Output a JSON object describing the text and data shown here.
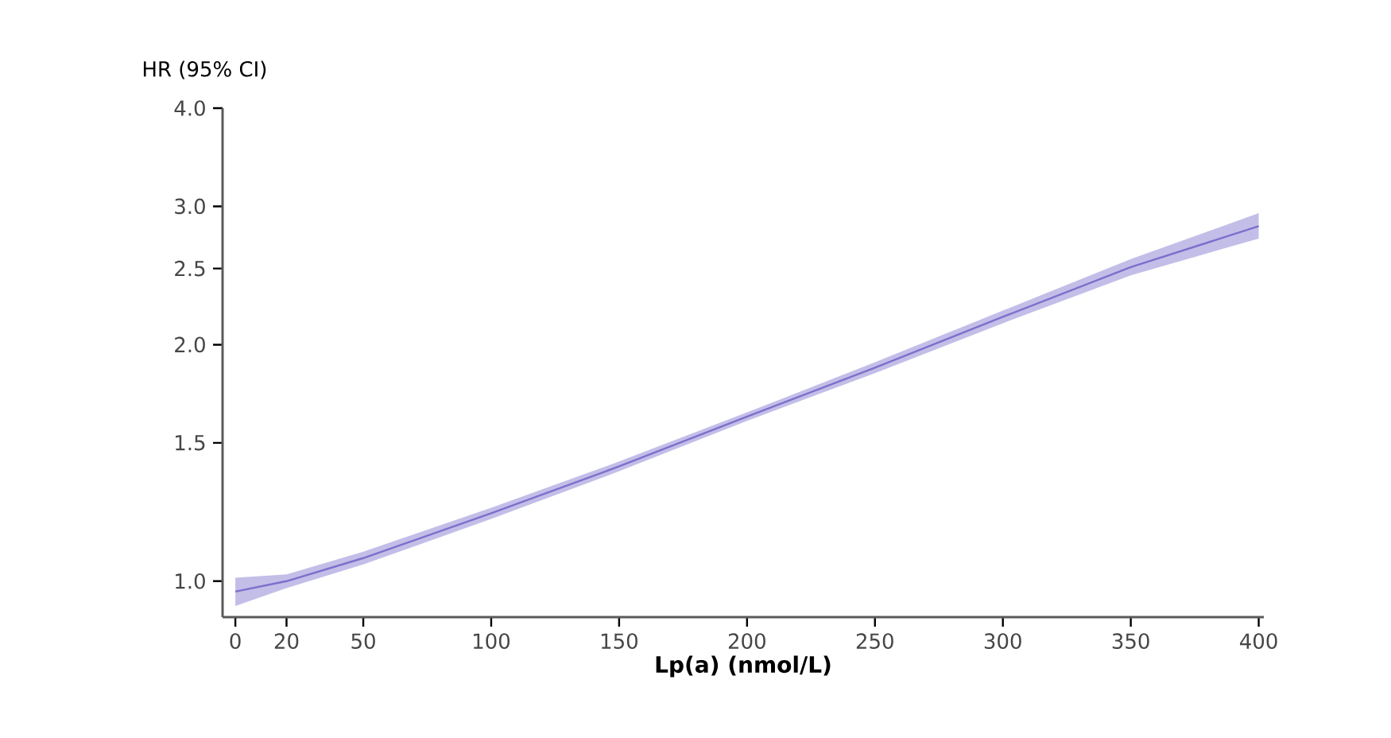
{
  "chart_data": {
    "type": "line",
    "xlabel": "Lp(a) (nmol/L)",
    "ylabel": "HR (95% CI)",
    "x": [
      0,
      20,
      50,
      100,
      150,
      200,
      250,
      300,
      350,
      400
    ],
    "series": [
      {
        "color": "#7b70cc",
        "values": [
          0.97,
          1.0,
          1.07,
          1.22,
          1.4,
          1.62,
          1.87,
          2.17,
          2.51,
          2.83
        ],
        "lower": [
          0.93,
          0.98,
          1.05,
          1.2,
          1.38,
          1.6,
          1.84,
          2.13,
          2.45,
          2.73
        ],
        "upper": [
          1.01,
          1.02,
          1.09,
          1.24,
          1.42,
          1.64,
          1.9,
          2.21,
          2.57,
          2.94
        ]
      }
    ],
    "xlim": [
      -5,
      402
    ],
    "ylim": [
      0.9,
      4.0
    ],
    "xticks": [
      0,
      20,
      50,
      100,
      150,
      200,
      250,
      300,
      350,
      400
    ],
    "yticks": [
      {
        "value": 1,
        "label": "1.0"
      },
      {
        "value": 1.5,
        "label": "1.5"
      },
      {
        "value": 2,
        "label": "2.0"
      },
      {
        "value": 2.5,
        "label": "2.5"
      },
      {
        "value": 3,
        "label": "3.0"
      },
      {
        "value": 4,
        "label": "4.0"
      }
    ],
    "log": "y",
    "marker": "none",
    "line_style": "solid"
  }
}
